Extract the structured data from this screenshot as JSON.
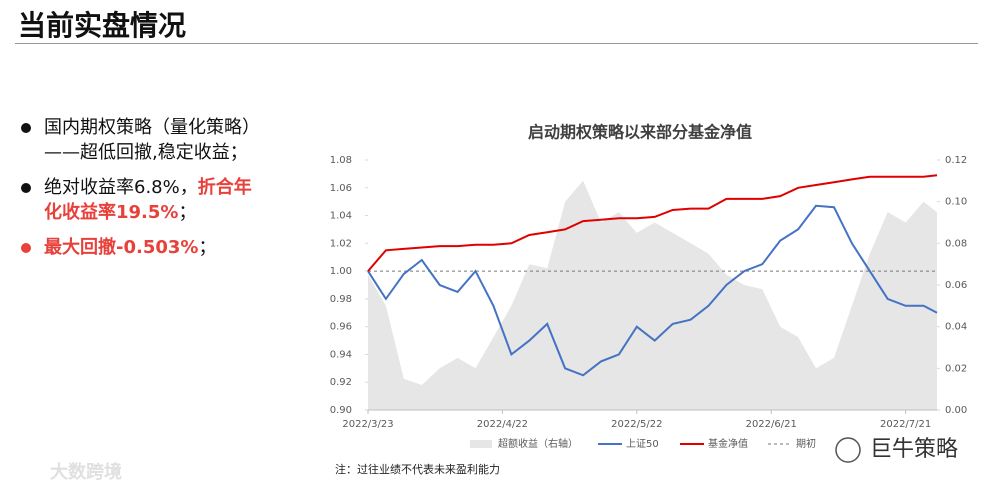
{
  "title": "当前实盘情况",
  "bullets": [
    {
      "segments": [
        {
          "text": "国内期权策略（量化策略）——超低回撤,稳定收益；",
          "color": "#111111",
          "bold": false
        }
      ],
      "bullet_color": "#111111"
    },
    {
      "segments": [
        {
          "text": "绝对收益率6.8%，",
          "color": "#111111",
          "bold": false
        },
        {
          "text": "折合年化收益率19.5%",
          "color": "#e8403a",
          "bold": true
        },
        {
          "text": "；",
          "color": "#111111",
          "bold": false
        }
      ],
      "bullet_color": "#111111"
    },
    {
      "segments": [
        {
          "text": "最大回撤-0.503%",
          "color": "#e8403a",
          "bold": true
        },
        {
          "text": "；",
          "color": "#111111",
          "bold": false
        }
      ],
      "bullet_color": "#e8403a"
    }
  ],
  "note": "注：过往业绩不代表未来盈利能力",
  "watermarks": [
    "巨牛策略",
    "大数跨境"
  ],
  "chart_data": {
    "type": "line",
    "title": "启动期权策略以来部分基金净值",
    "x": [
      "2022/3/23",
      "2022/3/27",
      "2022/3/31",
      "2022/4/4",
      "2022/4/8",
      "2022/4/12",
      "2022/4/16",
      "2022/4/20",
      "2022/4/24",
      "2022/4/28",
      "2022/5/2",
      "2022/5/6",
      "2022/5/10",
      "2022/5/14",
      "2022/5/18",
      "2022/5/22",
      "2022/5/26",
      "2022/5/30",
      "2022/6/3",
      "2022/6/7",
      "2022/6/11",
      "2022/6/15",
      "2022/6/19",
      "2022/6/23",
      "2022/6/27",
      "2022/7/1",
      "2022/7/5",
      "2022/7/9",
      "2022/7/13",
      "2022/7/17",
      "2022/7/21",
      "2022/7/25",
      "2022/7/28"
    ],
    "xlim": [
      "2022/3/23",
      "2022/7/28"
    ],
    "xticks": [
      "2022/3/23",
      "2022/4/22",
      "2022/5/22",
      "2022/6/21",
      "2022/7/21"
    ],
    "ylim": [
      0.9,
      1.08
    ],
    "yticks": [
      {
        "value": 0.9,
        "label": "0.90"
      },
      0.92,
      0.94,
      0.96,
      0.98,
      {
        "value": 1.0,
        "label": "1.00"
      },
      1.02,
      1.04,
      1.06,
      1.08
    ],
    "y2lim": [
      0,
      0.12
    ],
    "y2ticks": [
      {
        "value": 0,
        "label": "0.00"
      },
      0.02,
      0.04,
      0.06,
      0.08,
      {
        "value": 0.1,
        "label": "0.10"
      },
      0.12
    ],
    "grid": false,
    "series": [
      {
        "name": "超额收益（右轴）",
        "kind": "area",
        "axis": "y2",
        "color": "#e6e6e6",
        "values": [
          0.065,
          0.05,
          0.015,
          0.012,
          0.02,
          0.025,
          0.02,
          0.035,
          0.05,
          0.07,
          0.068,
          0.1,
          0.11,
          0.09,
          0.095,
          0.085,
          0.09,
          0.085,
          0.08,
          0.075,
          0.065,
          0.06,
          0.058,
          0.04,
          0.035,
          0.02,
          0.025,
          0.05,
          0.075,
          0.095,
          0.09,
          0.1,
          0.095
        ]
      },
      {
        "name": "上证50",
        "kind": "line",
        "color": "#4472c4",
        "values": [
          1.0,
          0.98,
          0.998,
          1.008,
          0.99,
          0.985,
          1.0,
          0.975,
          0.94,
          0.95,
          0.962,
          0.93,
          0.925,
          0.935,
          0.94,
          0.96,
          0.95,
          0.962,
          0.965,
          0.975,
          0.99,
          1.0,
          1.005,
          1.022,
          1.03,
          1.047,
          1.046,
          1.02,
          1.0,
          0.98,
          0.975,
          0.975,
          0.97
        ]
      },
      {
        "name": "基金净值",
        "kind": "line",
        "color": "#e00000",
        "values": [
          1.0,
          1.015,
          1.016,
          1.017,
          1.018,
          1.018,
          1.019,
          1.019,
          1.02,
          1.026,
          1.028,
          1.03,
          1.036,
          1.037,
          1.038,
          1.038,
          1.039,
          1.044,
          1.045,
          1.045,
          1.052,
          1.052,
          1.052,
          1.054,
          1.06,
          1.062,
          1.064,
          1.066,
          1.068,
          1.068,
          1.068,
          1.068,
          1.069
        ]
      }
    ],
    "hline": {
      "name": "期初",
      "value": 1.0,
      "color": "#777777"
    }
  }
}
